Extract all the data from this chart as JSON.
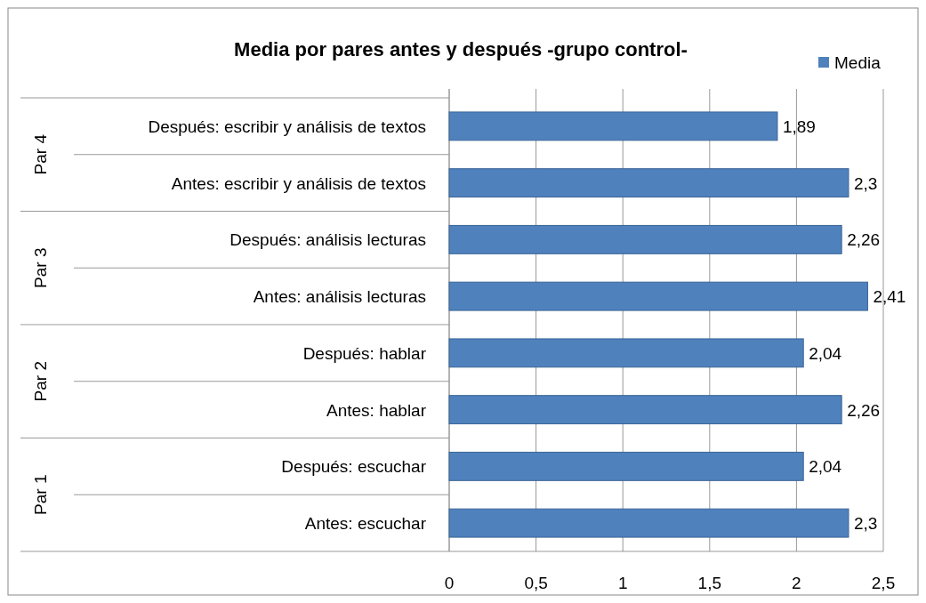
{
  "chart_data": {
    "type": "bar",
    "orientation": "horizontal",
    "title": "Media por pares antes y después -grupo control-",
    "categories": [
      "Después: escribir y análisis de textos",
      "Antes: escribir y análisis de textos",
      "Después: análisis lecturas",
      "Antes: análisis lecturas",
      "Después: hablar",
      "Antes: hablar",
      "Después: escuchar",
      "Antes: escuchar"
    ],
    "series": [
      {
        "name": "Media",
        "color": "#4f81bd",
        "values": [
          1.89,
          2.3,
          2.26,
          2.41,
          2.04,
          2.26,
          2.04,
          2.3
        ],
        "value_labels": [
          "1,89",
          "2,3",
          "2,26",
          "2,41",
          "2,04",
          "2,26",
          "2,04",
          "2,3"
        ]
      }
    ],
    "annotations": [
      "Par 4",
      "Par 3",
      "Par 2",
      "Par 1"
    ],
    "xlim": [
      0,
      2.5
    ],
    "xticks": [
      0,
      {
        "value": 0.5,
        "label": "0,5"
      },
      1,
      {
        "value": 1.5,
        "label": "1,5"
      },
      2,
      {
        "value": 2.5,
        "label": "2,5"
      }
    ],
    "grid": "x",
    "legend": "top right"
  }
}
